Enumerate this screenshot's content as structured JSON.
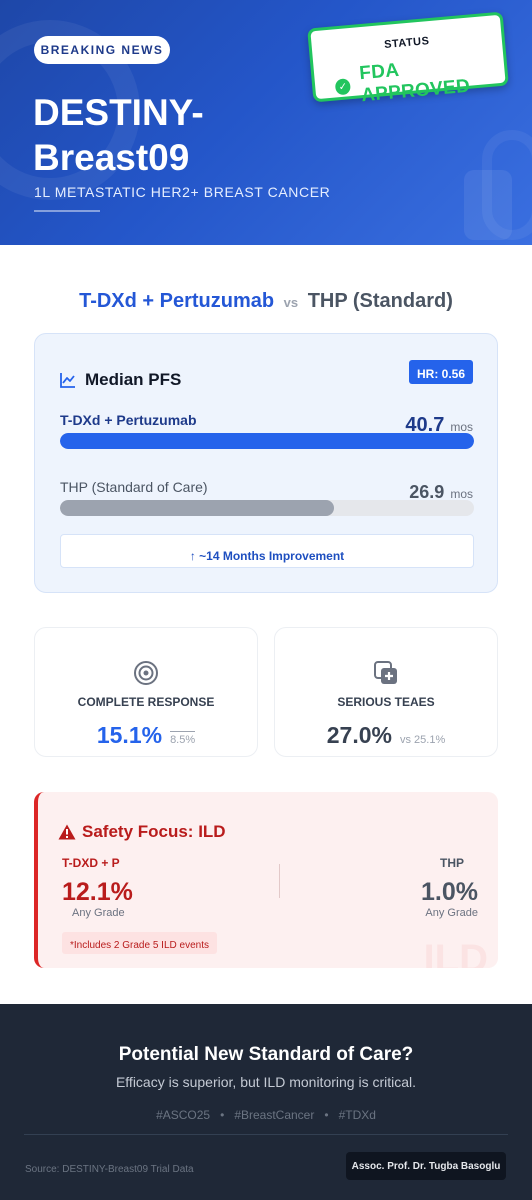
{
  "header": {
    "badge": "BREAKING NEWS",
    "title": "DESTINY-Breast09",
    "subtitle": "1L METASTATIC HER2+ BREAST CANCER",
    "status_label": "STATUS",
    "status_value": "FDA APPROVED",
    "status_icon": "check-circle-icon"
  },
  "comparison": {
    "arm_a": "T-DXd + Pertuzumab",
    "vs": "vs",
    "arm_b": "THP (Standard)"
  },
  "pfs": {
    "title": "Median PFS",
    "icon": "trend-chart-icon",
    "hr": "HR: 0.56",
    "arms": [
      {
        "label": "T-DXd + Pertuzumab",
        "value": "40.7",
        "unit": "mos",
        "fill_fraction": 1.0,
        "color": "#2563eb"
      },
      {
        "label": "THP (Standard of Care)",
        "value": "26.9",
        "unit": "mos",
        "fill_fraction": 0.661,
        "color": "#9ca3af"
      }
    ],
    "improvement": "↑ ~14 Months Improvement"
  },
  "metrics": [
    {
      "icon": "target-icon",
      "label": "COMPLETE RESPONSE",
      "value": "15.1%",
      "compare": "8.5%",
      "color": "#2563eb"
    },
    {
      "icon": "medical-copy-icon",
      "label": "SERIOUS TEAES",
      "value": "27.0%",
      "compare": "vs 25.1%",
      "color": "#374151"
    }
  ],
  "safety": {
    "title": "Safety Focus: ILD",
    "icon": "warning-triangle-icon",
    "left": {
      "arm": "T-DXD + P",
      "value": "12.1%",
      "grade": "Any Grade"
    },
    "right": {
      "arm": "THP",
      "value": "1.0%",
      "grade": "Any Grade"
    },
    "note": "*Includes 2 Grade 5 ILD events"
  },
  "footer": {
    "headline": "Potential New Standard of Care?",
    "sub": "Efficacy is superior, but ILD monitoring is critical.",
    "tags": [
      "#ASCO25",
      "#BreastCancer",
      "#TDXd"
    ],
    "source": "Source: DESTINY-Breast09 Trial Data",
    "author": "Assoc. Prof. Dr. Tugba Basoglu"
  },
  "colors": {
    "primary": "#2563eb",
    "success": "#22c55e",
    "danger": "#dc2626",
    "dark": "#1f2837"
  }
}
